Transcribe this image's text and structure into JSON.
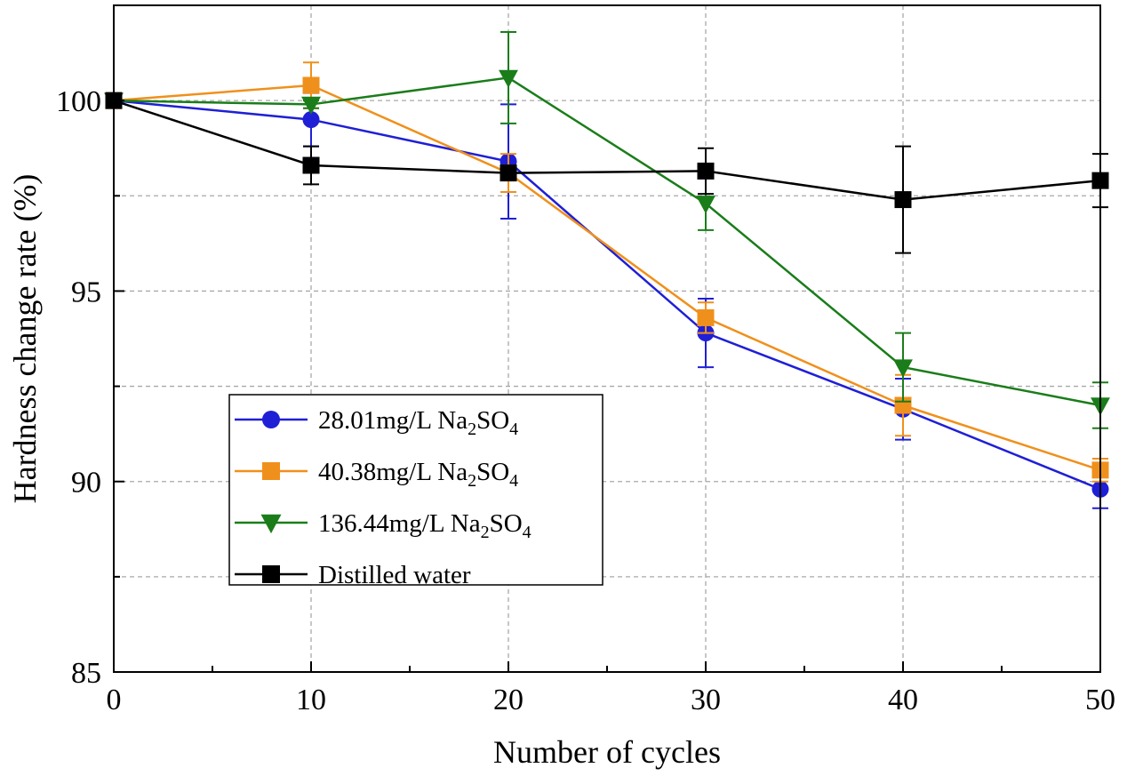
{
  "chart_data": {
    "type": "line",
    "xlabel": "Number of cycles",
    "ylabel": "Hardness change rate (%)",
    "xlim": [
      0,
      50
    ],
    "ylim": [
      85,
      102.5
    ],
    "xticks": [
      0,
      10,
      20,
      30,
      40,
      50
    ],
    "xtick_labels": [
      "0",
      "10",
      "20",
      "30",
      "40",
      "50"
    ],
    "yticks": [
      85,
      90,
      95,
      100
    ],
    "ytick_labels": [
      "85",
      "90",
      "95",
      "100"
    ],
    "grid": true,
    "legend_position": "bottom-left",
    "series": [
      {
        "name": "28.01mg/L  Na2SO4",
        "label_main": "28.01mg/L  Na",
        "label_sub1": "2",
        "label_mid": "SO",
        "label_sub2": "4",
        "color": "#1f1fd6",
        "marker": "circle",
        "x": [
          0,
          10,
          20,
          30,
          40,
          50
        ],
        "y": [
          100.0,
          99.5,
          98.4,
          93.9,
          91.9,
          89.8
        ],
        "err": [
          0.0,
          0.7,
          1.5,
          0.9,
          0.8,
          0.5
        ]
      },
      {
        "name": "40.38mg/L  Na2SO4",
        "label_main": "40.38mg/L  Na",
        "label_sub1": "2",
        "label_mid": "SO",
        "label_sub2": "4",
        "color": "#f0901c",
        "marker": "square",
        "x": [
          0,
          10,
          20,
          30,
          40,
          50
        ],
        "y": [
          100.0,
          100.4,
          98.1,
          94.3,
          92.0,
          90.3
        ],
        "err": [
          0.0,
          0.6,
          0.5,
          0.4,
          0.8,
          0.3
        ]
      },
      {
        "name": "136.44mg/L  Na2SO4",
        "label_main": "136.44mg/L  Na",
        "label_sub1": "2",
        "label_mid": "SO",
        "label_sub2": "4",
        "color": "#1a7d1a",
        "marker": "triangle-down",
        "x": [
          0,
          10,
          20,
          30,
          40,
          50
        ],
        "y": [
          100.0,
          99.9,
          100.6,
          97.3,
          93.0,
          92.0
        ],
        "err": [
          0.0,
          0.1,
          1.2,
          0.7,
          0.9,
          0.6
        ]
      },
      {
        "name": "Distilled water",
        "label_main": "Distilled water",
        "label_sub1": "",
        "label_mid": "",
        "label_sub2": "",
        "color": "#000000",
        "marker": "square",
        "x": [
          0,
          10,
          20,
          30,
          40,
          50
        ],
        "y": [
          100.0,
          98.3,
          98.1,
          98.15,
          97.4,
          97.9
        ],
        "err": [
          0.0,
          0.5,
          0.0,
          0.6,
          1.4,
          0.7
        ]
      }
    ]
  }
}
